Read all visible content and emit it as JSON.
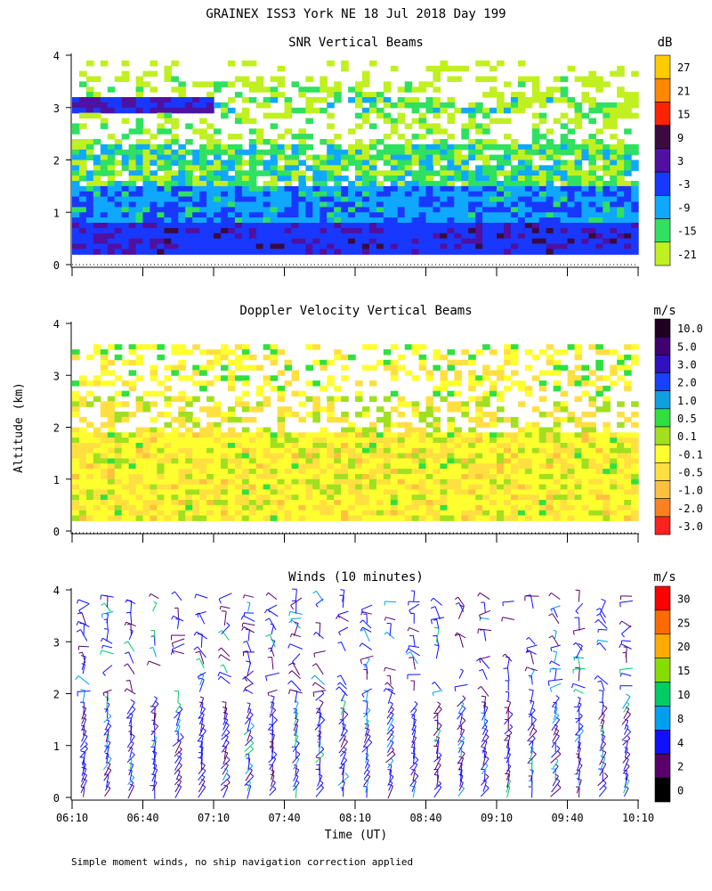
{
  "figure": {
    "title": "GRAINEX ISS3 York NE  18 Jul 2018 Day 199",
    "ylabel": "Altitude (km)",
    "xlabel": "Time (UT)",
    "footnote": "Simple moment winds, no ship navigation correction applied",
    "x_ticks": [
      "06:10",
      "06:40",
      "07:10",
      "07:40",
      "08:10",
      "08:40",
      "09:10",
      "09:40",
      "10:10"
    ],
    "y_ticks": [
      "0",
      "1",
      "2",
      "3",
      "4"
    ]
  },
  "chart_data": [
    {
      "type": "heatmap",
      "title": "SNR Vertical Beams",
      "unit": "dB",
      "x_range": [
        "06:10",
        "10:10"
      ],
      "ylim": [
        0,
        4
      ],
      "colorbar": {
        "labels": [
          "27",
          "21",
          "15",
          "9",
          "3",
          "-3",
          "-9",
          "-15",
          "-21"
        ],
        "colors": [
          "#ffcc00",
          "#ff8800",
          "#ff2200",
          "#3a0a40",
          "#5010a0",
          "#1838ff",
          "#10a8ff",
          "#30e060",
          "#c0f020"
        ]
      },
      "layers": [
        {
          "alt_km": [
            0.15,
            0.8
          ],
          "snr_db": "-3 to 9",
          "note": "strong return near surface"
        },
        {
          "alt_km": [
            0.8,
            1.5
          ],
          "snr_db": "-9 to -3"
        },
        {
          "alt_km": [
            1.5,
            2.3
          ],
          "snr_db": "-15 to -9"
        },
        {
          "alt_km": [
            2.3,
            3.5
          ],
          "snr_db": "-21 to -15, patchy"
        },
        {
          "alt_km": [
            2.9,
            3.1
          ],
          "snr_db": "3 to 9",
          "time": "06:10-06:40"
        }
      ]
    },
    {
      "type": "heatmap",
      "title": "Doppler Velocity Vertical Beams",
      "unit": "m/s",
      "x_range": [
        "06:10",
        "10:10"
      ],
      "ylim": [
        0,
        4
      ],
      "colorbar": {
        "labels": [
          "10.0",
          "5.0",
          "3.0",
          "2.0",
          "1.0",
          "0.5",
          "0.1",
          "-0.1",
          "-0.5",
          "-1.0",
          "-2.0",
          "-3.0"
        ],
        "colors": [
          "#200020",
          "#400070",
          "#3010c0",
          "#1a40ff",
          "#10a0e0",
          "#30e040",
          "#a0e020",
          "#ffff30",
          "#ffe040",
          "#ffc040",
          "#ff8020",
          "#ff2020"
        ]
      },
      "layers": [
        {
          "alt_km": [
            0.15,
            1.9
          ],
          "velocity_ms": "-0.5 to 0.1"
        },
        {
          "alt_km": [
            1.9,
            3.5
          ],
          "velocity_ms": "-0.5 to 0.5, sparse"
        }
      ]
    },
    {
      "type": "scatter",
      "title": "Winds (10 minutes)",
      "unit": "m/s",
      "ylim": [
        0,
        4
      ],
      "colorbar": {
        "labels": [
          "30",
          "25",
          "20",
          "15",
          "10",
          "8",
          "4",
          "2",
          "0"
        ],
        "colors": [
          "#ff0000",
          "#ff6a00",
          "#ffaa00",
          "#88dd00",
          "#00cc66",
          "#00a0ee",
          "#1010ff",
          "#5a006a",
          "#000000"
        ]
      },
      "profile_times": [
        "06:10",
        "06:20",
        "06:30",
        "06:40",
        "06:50",
        "07:00",
        "07:10",
        "07:20",
        "07:30",
        "07:40",
        "07:50",
        "08:00",
        "08:10",
        "08:20",
        "08:30",
        "08:40",
        "08:50",
        "09:00",
        "09:10",
        "09:20",
        "09:30",
        "09:40",
        "09:50",
        "10:00"
      ],
      "typical_speed_ms": "2-8"
    }
  ]
}
